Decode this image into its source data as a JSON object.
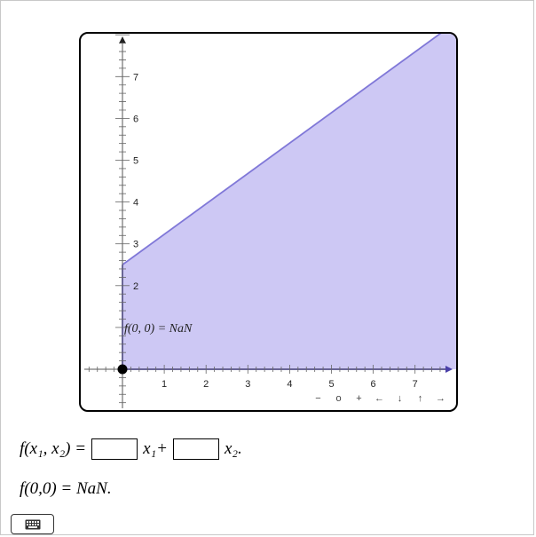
{
  "board": {
    "fill_color": "#cdc8f4",
    "line_color": "#8078d8",
    "x_ticks": [
      "1",
      "2",
      "3",
      "4",
      "5",
      "6",
      "7"
    ],
    "y_ticks": [
      "2",
      "3",
      "4",
      "5",
      "6",
      "7"
    ],
    "point_label": "f(0, 0) = NaN",
    "nav_buttons": [
      "−",
      "o",
      "+",
      "←",
      "↓",
      "↑",
      "→"
    ]
  },
  "chart_data": {
    "type": "area",
    "x": [
      0,
      7.7
    ],
    "y": [
      2.5,
      8.1
    ],
    "xlim": [
      -0.9,
      7.9
    ],
    "ylim": [
      -1,
      8.1
    ],
    "point": {
      "x": 0,
      "y": 0,
      "label": "f(0, 0) = NaN"
    }
  },
  "formula": {
    "lhs": "f(x₁, x₂) =",
    "term1": "x₁+",
    "term2": "x₂."
  },
  "result": "f(0,0) = NaN.",
  "keyboard_icon": "keyboard-icon"
}
